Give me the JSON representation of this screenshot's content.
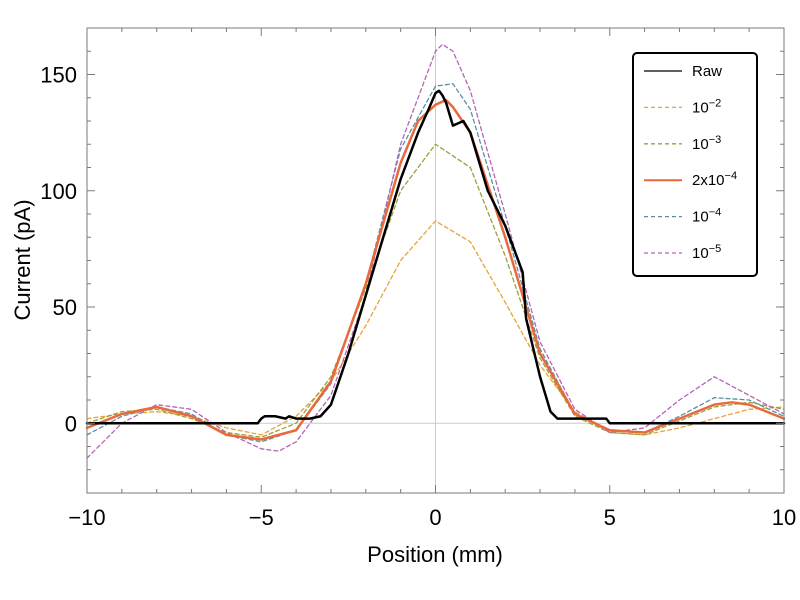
{
  "chart_data": {
    "type": "line",
    "title": "",
    "xlabel": "Position (mm)",
    "ylabel": "Current (pA)",
    "xlim": [
      -10,
      10
    ],
    "ylim": [
      -30,
      170
    ],
    "grid": false,
    "zero_lines": true,
    "legend_position": "top-right",
    "xticks": [
      -10,
      -5,
      0,
      5,
      10
    ],
    "xtick_labels": [
      "−10",
      "−5",
      "0",
      "5",
      "10"
    ],
    "yticks": [
      0,
      50,
      100,
      150
    ],
    "ytick_labels": [
      "0",
      "50",
      "100",
      "150"
    ],
    "series": [
      {
        "name": "Raw",
        "label_base": "Raw",
        "label_exp": "",
        "color": "#000000",
        "style": "solid",
        "width": 2.5,
        "x": [
          -10,
          -5.1,
          -5.0,
          -4.9,
          -4.6,
          -4.3,
          -4.2,
          -4.0,
          -3.6,
          -3.3,
          -3.0,
          -2.5,
          -2.0,
          -1.5,
          -1.0,
          -0.5,
          -0.2,
          0.0,
          0.1,
          0.2,
          0.3,
          0.5,
          0.8,
          1.0,
          1.5,
          2.0,
          2.5,
          2.6,
          3.0,
          3.3,
          3.5,
          4.0,
          4.5,
          4.9,
          5.0,
          10
        ],
        "y": [
          0,
          0,
          2,
          3,
          3,
          2,
          3,
          2,
          2,
          3,
          8,
          30,
          55,
          80,
          105,
          125,
          135,
          142,
          143,
          141,
          138,
          128,
          130,
          125,
          100,
          85,
          65,
          45,
          20,
          5,
          2,
          2,
          2,
          2,
          0,
          0
        ]
      },
      {
        "name": "10^-2",
        "label_base": "10",
        "label_exp": "−2",
        "color": "#e8a33a",
        "style": "dashed",
        "width": 1.3,
        "x": [
          -10,
          -9,
          -8,
          -7,
          -6,
          -5,
          -4,
          -3,
          -2,
          -1,
          0,
          1,
          2,
          3,
          4,
          5,
          6,
          7,
          8,
          9,
          10
        ],
        "y": [
          2,
          4,
          5,
          3,
          -2,
          -5,
          3,
          18,
          42,
          70,
          87,
          78,
          52,
          25,
          5,
          -4,
          -5,
          -2,
          2,
          6,
          7
        ]
      },
      {
        "name": "10^-3",
        "label_base": "10",
        "label_exp": "−3",
        "color": "#9aa03c",
        "style": "dashed",
        "width": 1.3,
        "x": [
          -10,
          -9,
          -8,
          -7,
          -6,
          -5,
          -4,
          -3,
          -2,
          -1,
          0,
          1,
          2,
          3,
          4,
          5,
          6,
          7,
          8,
          9,
          10
        ],
        "y": [
          0,
          5,
          6,
          2,
          -4,
          -6,
          0,
          20,
          58,
          100,
          120,
          110,
          72,
          28,
          3,
          -4,
          -5,
          1,
          7,
          9,
          6
        ]
      },
      {
        "name": "2x10^-4",
        "label_base": "2x10",
        "label_exp": "−4",
        "color": "#e86a3c",
        "style": "solid",
        "width": 2.5,
        "x": [
          -10,
          -9,
          -8,
          -7,
          -6,
          -5,
          -4,
          -3,
          -2,
          -1,
          -0.5,
          0,
          0.3,
          0.5,
          1,
          2,
          3,
          4,
          5,
          6,
          7,
          8,
          8.5,
          9,
          10
        ],
        "y": [
          -2,
          4,
          7,
          3,
          -5,
          -7,
          -3,
          18,
          60,
          112,
          130,
          137,
          139,
          136,
          125,
          80,
          30,
          4,
          -3,
          -4,
          2,
          8,
          9,
          8,
          2
        ]
      },
      {
        "name": "10^-4",
        "label_base": "10",
        "label_exp": "−4",
        "color": "#5d8fa3",
        "style": "dashed",
        "width": 1.3,
        "x": [
          -10,
          -9,
          -8,
          -7,
          -6,
          -5,
          -4,
          -3,
          -2,
          -1,
          0,
          0.5,
          1,
          2,
          3,
          4,
          5,
          6,
          7,
          8,
          9,
          10
        ],
        "y": [
          -5,
          3,
          7,
          4,
          -5,
          -8,
          -3,
          17,
          60,
          118,
          145,
          146,
          135,
          85,
          32,
          4,
          -3,
          -4,
          3,
          11,
          10,
          3
        ]
      },
      {
        "name": "10^-5",
        "label_base": "10",
        "label_exp": "−5",
        "color": "#b565b5",
        "style": "dashed",
        "width": 1.3,
        "x": [
          -10,
          -9,
          -8,
          -7,
          -6,
          -5,
          -4.5,
          -4,
          -3,
          -2,
          -1,
          0,
          0.2,
          0.5,
          1,
          2,
          3,
          4,
          5,
          6,
          7,
          8,
          9,
          10
        ],
        "y": [
          -15,
          0,
          8,
          6,
          -4,
          -11,
          -12,
          -8,
          12,
          55,
          120,
          160,
          163,
          160,
          143,
          90,
          35,
          6,
          -4,
          -2,
          10,
          20,
          12,
          4
        ]
      }
    ]
  }
}
